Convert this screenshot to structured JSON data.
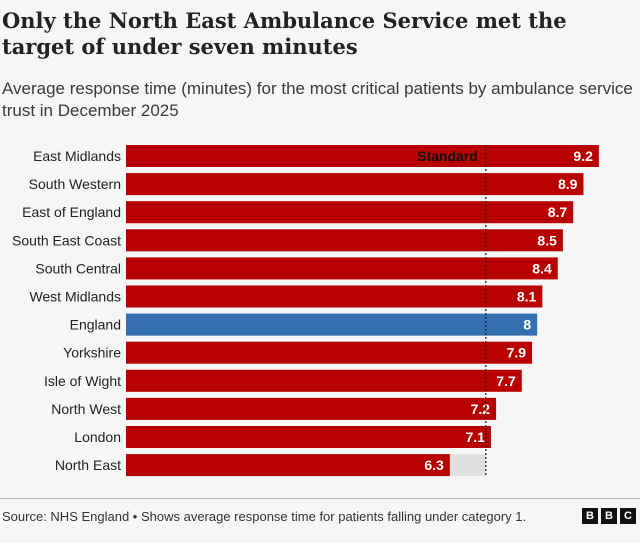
{
  "chart_data": {
    "type": "bar",
    "orientation": "horizontal",
    "title": "Only the North East Ambulance Service met the target of under seven minutes",
    "subtitle": "Average response time (minutes) for the most critical patients by ambulance service trust in December 2025",
    "categories": [
      "East Midlands",
      "South Western",
      "East of England",
      "South East Coast",
      "South Central",
      "West Midlands",
      "England",
      "Yorkshire",
      "Isle of Wight",
      "North West",
      "London",
      "North East"
    ],
    "values": [
      9.2,
      8.9,
      8.7,
      8.5,
      8.4,
      8.1,
      8,
      7.9,
      7.7,
      7.2,
      7.1,
      6.3
    ],
    "highlight": "England",
    "reference_line": {
      "label": "Standard",
      "value": 7
    },
    "xlim": [
      0,
      9.6
    ],
    "grid": false,
    "colors": {
      "bar": "#b80000",
      "highlight": "#3470b0",
      "standard_background": "#e0e0e0"
    }
  },
  "footer": {
    "source": "Source: NHS England • Shows average response time for patients falling under category 1.",
    "logo": [
      "B",
      "B",
      "C"
    ]
  }
}
